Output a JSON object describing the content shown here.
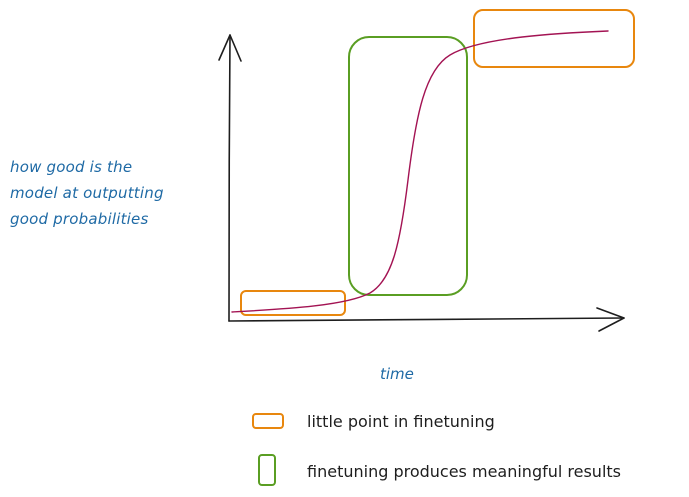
{
  "y_axis_label": [
    "how good is the",
    "model at outputting",
    "good probabilities"
  ],
  "x_axis_label": "time",
  "legend": [
    {
      "label": "little point in finetuning",
      "color": "#e8870e",
      "shape": "wide-box"
    },
    {
      "label": "finetuning produces meaningful results",
      "color": "#5a9e23",
      "shape": "tall-box"
    }
  ],
  "colors": {
    "axes": "#1e1e1e",
    "curve": "#a31353",
    "orange": "#e8870e",
    "green": "#5a9e23",
    "label_blue": "#1f6aa5"
  }
}
